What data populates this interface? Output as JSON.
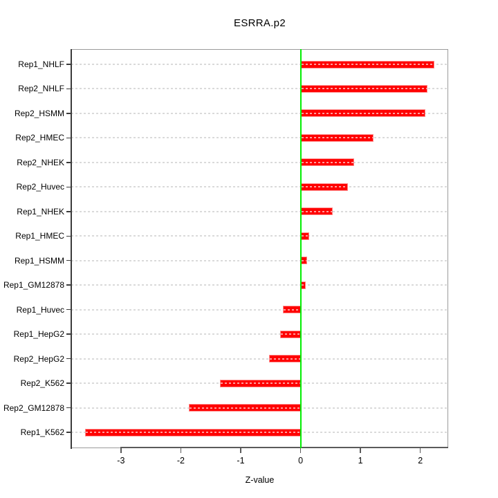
{
  "chart_data": {
    "type": "bar",
    "orientation": "horizontal",
    "title": "ESRRA.p2",
    "xlabel": "Z-value",
    "ylabel": "",
    "categories": [
      "Rep1_NHLF",
      "Rep2_NHLF",
      "Rep2_HSMM",
      "Rep2_HMEC",
      "Rep2_NHEK",
      "Rep2_Huvec",
      "Rep1_NHEK",
      "Rep1_HMEC",
      "Rep1_HSMM",
      "Rep1_GM12878",
      "Rep1_Huvec",
      "Rep1_HepG2",
      "Rep2_HepG2",
      "Rep2_K562",
      "Rep2_GM12878",
      "Rep1_K562"
    ],
    "values": [
      2.23,
      2.12,
      2.08,
      1.22,
      0.9,
      0.79,
      0.54,
      0.14,
      0.11,
      0.09,
      -0.29,
      -0.34,
      -0.53,
      -1.35,
      -1.87,
      -3.6
    ],
    "x_ticks": [
      -3,
      -2,
      -1,
      0,
      1,
      2
    ],
    "xlim": [
      -3.83,
      2.46
    ],
    "grid": "dashed-horizontal",
    "legend_position": "none",
    "colors": {
      "bar_fill": "#ff0000",
      "bar_border": "#ff8a8a",
      "zero_line": "#00ee00",
      "gridline": "#dadada",
      "box": "#9a9a9a",
      "axis": "#3a3a3a",
      "text": "#000000",
      "background": "#ffffff"
    }
  }
}
